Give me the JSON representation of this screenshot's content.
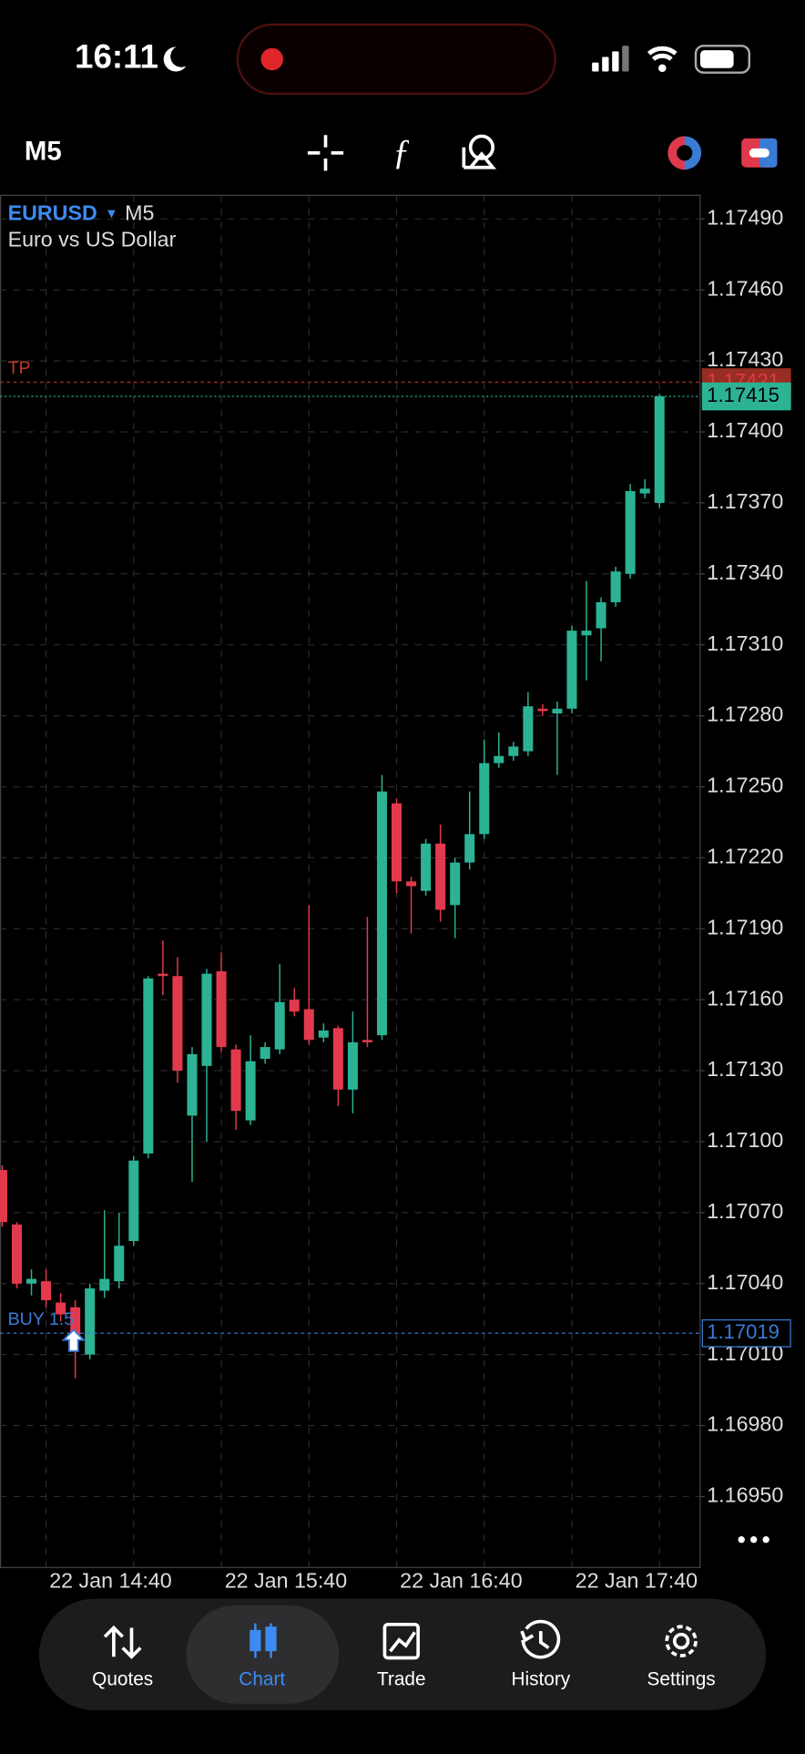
{
  "status": {
    "time": "16:11"
  },
  "toolbar": {
    "timeframe": "M5"
  },
  "chart_data": {
    "type": "candlestick",
    "symbol": "EURUSD",
    "timeframe": "M5",
    "subtitle": "Euro vs US Dollar",
    "up_color": "#2bb394",
    "down_color": "#e23a4c",
    "grid": true,
    "categories": [
      null,
      null,
      null,
      "22 Jan 14:40",
      null,
      null,
      null,
      null,
      null,
      null,
      null,
      null,
      null,
      null,
      null,
      "22 Jan 15:40",
      null,
      null,
      null,
      null,
      null,
      null,
      null,
      null,
      null,
      null,
      null,
      "22 Jan 16:40",
      null,
      null,
      null,
      null,
      null,
      null,
      null,
      null,
      null,
      null,
      null,
      "22 Jan 17:40",
      null,
      null,
      null,
      null,
      null,
      null
    ],
    "open": [
      1.17088,
      1.17065,
      1.1704,
      1.17041,
      1.17032,
      1.1703,
      1.1701,
      1.17037,
      1.17041,
      1.17058,
      1.17095,
      1.17171,
      1.1717,
      1.17111,
      1.17132,
      1.17172,
      1.17139,
      1.17109,
      1.17135,
      1.17139,
      1.1716,
      1.17156,
      1.17144,
      1.17148,
      1.17122,
      1.17143,
      1.17145,
      1.17243,
      1.1721,
      1.17206,
      1.17226,
      1.172,
      1.17218,
      1.1723,
      1.1726,
      1.17263,
      1.17265,
      1.17283,
      1.17281,
      1.17283,
      1.17314,
      1.17317,
      1.17328,
      1.1734,
      1.17374,
      1.1737
    ],
    "high": [
      1.1709,
      1.17066,
      1.17046,
      1.17046,
      1.17036,
      1.17033,
      1.1704,
      1.17071,
      1.1707,
      1.17094,
      1.1717,
      1.17185,
      1.17178,
      1.1714,
      1.17173,
      1.1718,
      1.17141,
      1.17145,
      1.17142,
      1.17175,
      1.17165,
      1.172,
      1.1715,
      1.17149,
      1.17155,
      1.17195,
      1.17255,
      1.17245,
      1.17212,
      1.17228,
      1.17234,
      1.1722,
      1.17248,
      1.1727,
      1.17273,
      1.17269,
      1.1729,
      1.17285,
      1.17286,
      1.17318,
      1.17337,
      1.1733,
      1.17343,
      1.17378,
      1.1738,
      1.17416
    ],
    "low": [
      1.17064,
      1.17038,
      1.17035,
      1.1703,
      1.17024,
      1.17,
      1.17008,
      1.17034,
      1.17038,
      1.17056,
      1.17093,
      1.17162,
      1.17125,
      1.17083,
      1.171,
      1.17138,
      1.17105,
      1.17107,
      1.17133,
      1.17137,
      1.17153,
      1.17141,
      1.17142,
      1.17115,
      1.17112,
      1.1714,
      1.17143,
      1.17205,
      1.17188,
      1.17204,
      1.17193,
      1.17186,
      1.17215,
      1.17228,
      1.17258,
      1.17261,
      1.17263,
      1.1728,
      1.17255,
      1.17281,
      1.17295,
      1.17303,
      1.17326,
      1.17338,
      1.17372,
      1.17368
    ],
    "close": [
      1.17066,
      1.1704,
      1.17042,
      1.17033,
      1.17027,
      1.17017,
      1.17038,
      1.17042,
      1.17056,
      1.17092,
      1.17169,
      1.1717,
      1.1713,
      1.17137,
      1.17171,
      1.1714,
      1.17113,
      1.17134,
      1.1714,
      1.17159,
      1.17155,
      1.17143,
      1.17147,
      1.17122,
      1.17142,
      1.17142,
      1.17248,
      1.1721,
      1.17208,
      1.17226,
      1.17198,
      1.17218,
      1.1723,
      1.1726,
      1.17263,
      1.17267,
      1.17284,
      1.17282,
      1.17283,
      1.17316,
      1.17316,
      1.17328,
      1.17341,
      1.17375,
      1.17376,
      1.17415
    ],
    "ylim": [
      1.1692,
      1.175
    ],
    "yticks": [
      {
        "value": 1.1749,
        "label": "1.17490"
      },
      {
        "value": 1.1746,
        "label": "1.17460"
      },
      {
        "value": 1.1743,
        "label": "1.17430"
      },
      {
        "value": 1.174,
        "label": "1.17400"
      },
      {
        "value": 1.1737,
        "label": "1.17370"
      },
      {
        "value": 1.1734,
        "label": "1.17340"
      },
      {
        "value": 1.1731,
        "label": "1.17310"
      },
      {
        "value": 1.1728,
        "label": "1.17280"
      },
      {
        "value": 1.1725,
        "label": "1.17250"
      },
      {
        "value": 1.1722,
        "label": "1.17220"
      },
      {
        "value": 1.1719,
        "label": "1.17190"
      },
      {
        "value": 1.1716,
        "label": "1.17160"
      },
      {
        "value": 1.1713,
        "label": "1.17130"
      },
      {
        "value": 1.171,
        "label": "1.17100"
      },
      {
        "value": 1.1707,
        "label": "1.17070"
      },
      {
        "value": 1.1704,
        "label": "1.17040"
      },
      {
        "value": 1.1701,
        "label": "1.17010"
      },
      {
        "value": 1.1698,
        "label": "1.16980"
      },
      {
        "value": 1.1695,
        "label": "1.16950"
      }
    ],
    "price_lines": [
      {
        "name": "TP",
        "value": 1.17421,
        "color": "#c0392b"
      },
      {
        "value": 1.17415,
        "color": "#2bb394"
      },
      {
        "name": "BUY 1.5",
        "value": 1.17019,
        "color": "#3a7bd5"
      }
    ]
  },
  "tabs": [
    "Quotes",
    "Chart",
    "Trade",
    "History",
    "Settings"
  ]
}
